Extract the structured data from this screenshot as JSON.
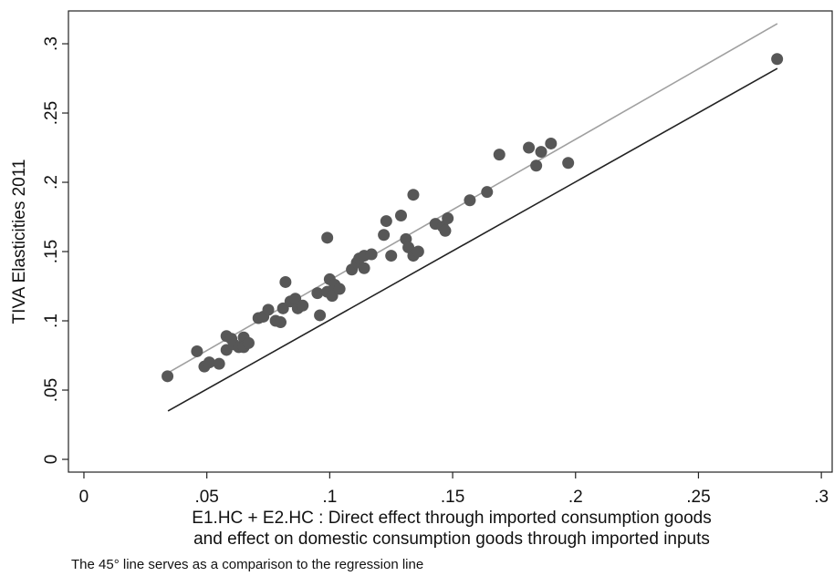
{
  "chart_data": {
    "type": "scatter",
    "ylabel": "TIVA Elasticities 2011",
    "xlabel": [
      "E1.HC + E2.HC : Direct effect through imported consumption goods",
      "and effect on domestic consumption goods through imported inputs"
    ],
    "note": "The 45° line serves as a comparison to the regression line",
    "xlim": [
      -0.0063,
      0.3044
    ],
    "ylim": [
      -0.0092,
      0.3237
    ],
    "xticks": [
      0,
      {
        "value": 0.05,
        "label": ".05"
      },
      {
        "value": 0.1,
        "label": ".1"
      },
      {
        "value": 0.15,
        "label": ".15"
      },
      {
        "value": 0.2,
        "label": ".2"
      },
      {
        "value": 0.25,
        "label": ".25"
      },
      {
        "value": 0.3,
        "label": ".3"
      }
    ],
    "yticks": [
      0,
      {
        "value": 0.05,
        "label": ".05"
      },
      {
        "value": 0.1,
        "label": ".1"
      },
      {
        "value": 0.15,
        "label": ".15"
      },
      {
        "value": 0.2,
        "label": ".2"
      },
      {
        "value": 0.25,
        "label": ".25"
      },
      {
        "value": 0.3,
        "label": ".3"
      }
    ],
    "grid": false,
    "color": "#575757",
    "x": [
      0.034,
      0.046,
      0.049,
      0.051,
      0.055,
      0.058,
      0.058,
      0.06,
      0.061,
      0.063,
      0.065,
      0.065,
      0.067,
      0.071,
      0.073,
      0.075,
      0.078,
      0.08,
      0.081,
      0.082,
      0.084,
      0.086,
      0.087,
      0.089,
      0.095,
      0.096,
      0.099,
      0.099,
      0.1,
      0.101,
      0.102,
      0.104,
      0.109,
      0.111,
      0.112,
      0.114,
      0.114,
      0.117,
      0.122,
      0.123,
      0.125,
      0.129,
      0.131,
      0.132,
      0.134,
      0.134,
      0.136,
      0.143,
      0.146,
      0.147,
      0.148,
      0.157,
      0.164,
      0.169,
      0.181,
      0.184,
      0.186,
      0.19,
      0.197,
      0.282
    ],
    "values": [
      0.06,
      0.078,
      0.067,
      0.07,
      0.069,
      0.079,
      0.089,
      0.087,
      0.083,
      0.081,
      0.088,
      0.081,
      0.084,
      0.102,
      0.103,
      0.108,
      0.1,
      0.099,
      0.109,
      0.128,
      0.114,
      0.116,
      0.109,
      0.111,
      0.12,
      0.104,
      0.121,
      0.16,
      0.13,
      0.118,
      0.126,
      0.123,
      0.137,
      0.142,
      0.145,
      0.138,
      0.147,
      0.148,
      0.162,
      0.172,
      0.147,
      0.176,
      0.159,
      0.153,
      0.147,
      0.191,
      0.15,
      0.17,
      0.168,
      0.165,
      0.174,
      0.187,
      0.193,
      0.22,
      0.225,
      0.212,
      0.222,
      0.228,
      0.214,
      0.289
    ],
    "lines": [
      {
        "color": "#a0a0a0",
        "x": [
          0.0342,
          0.2821
        ],
        "values": [
          0.0625,
          0.3145
        ]
      },
      {
        "color": "#222222",
        "x": [
          0.0342,
          0.2821
        ],
        "values": [
          0.0349,
          0.2822
        ]
      }
    ]
  }
}
